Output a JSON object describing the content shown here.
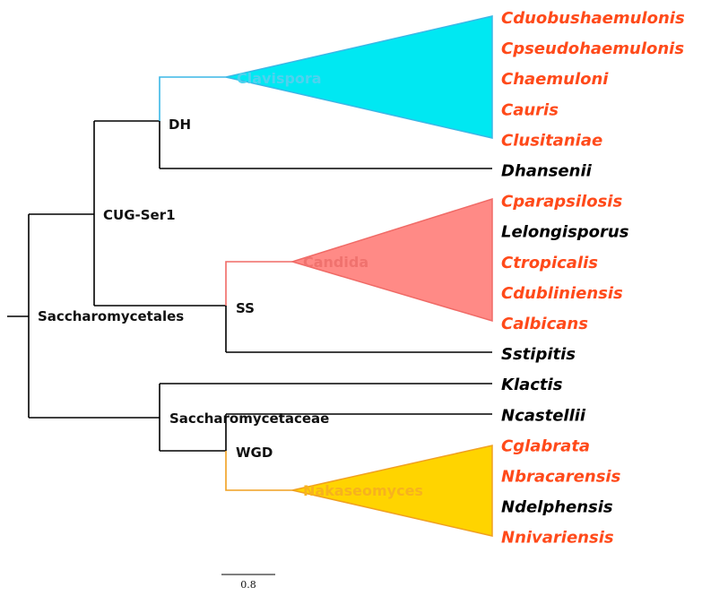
{
  "colors": {
    "branch": "#000000",
    "highlight_tip": "#ff4a1a",
    "normal_tip": "#000000",
    "clavispora": "#00e8f2",
    "clavispora_stroke": "#3bb7e6",
    "candida": "#ff8a86",
    "candida_stroke": "#f06a66",
    "nakaseomyces": "#ffd400",
    "nakaseomyces_stroke": "#f0a020"
  },
  "tips": [
    {
      "name": "Cduobushaemulonis",
      "highlight": true
    },
    {
      "name": "Cpseudohaemulonis",
      "highlight": true
    },
    {
      "name": "Chaemuloni",
      "highlight": true
    },
    {
      "name": "Cauris",
      "highlight": true
    },
    {
      "name": "Clusitaniae",
      "highlight": true
    },
    {
      "name": "Dhansenii",
      "highlight": false
    },
    {
      "name": "Cparapsilosis",
      "highlight": true
    },
    {
      "name": "Lelongisporus",
      "highlight": false
    },
    {
      "name": "Ctropicalis",
      "highlight": true
    },
    {
      "name": "Cdubliniensis",
      "highlight": true
    },
    {
      "name": "Calbicans",
      "highlight": true
    },
    {
      "name": "Sstipitis",
      "highlight": false
    },
    {
      "name": "Klactis",
      "highlight": false
    },
    {
      "name": "Ncastellii",
      "highlight": false
    },
    {
      "name": "Cglabrata",
      "highlight": true
    },
    {
      "name": "Nbracarensis",
      "highlight": true
    },
    {
      "name": "Ndelphensis",
      "highlight": false
    },
    {
      "name": "Nnivariensis",
      "highlight": true
    }
  ],
  "internal_nodes": {
    "root": "Saccharomycetales",
    "cug": "CUG-Ser1",
    "dh": "DH",
    "ss": "SS",
    "saccharomycetaceae": "Saccharomycetaceae",
    "wgd": "WGD"
  },
  "clades": {
    "clavispora": "Clavispora",
    "candida": "Candida",
    "nakaseomyces": "Nakaseomyces"
  },
  "scale_bar": {
    "label": "0.8"
  }
}
